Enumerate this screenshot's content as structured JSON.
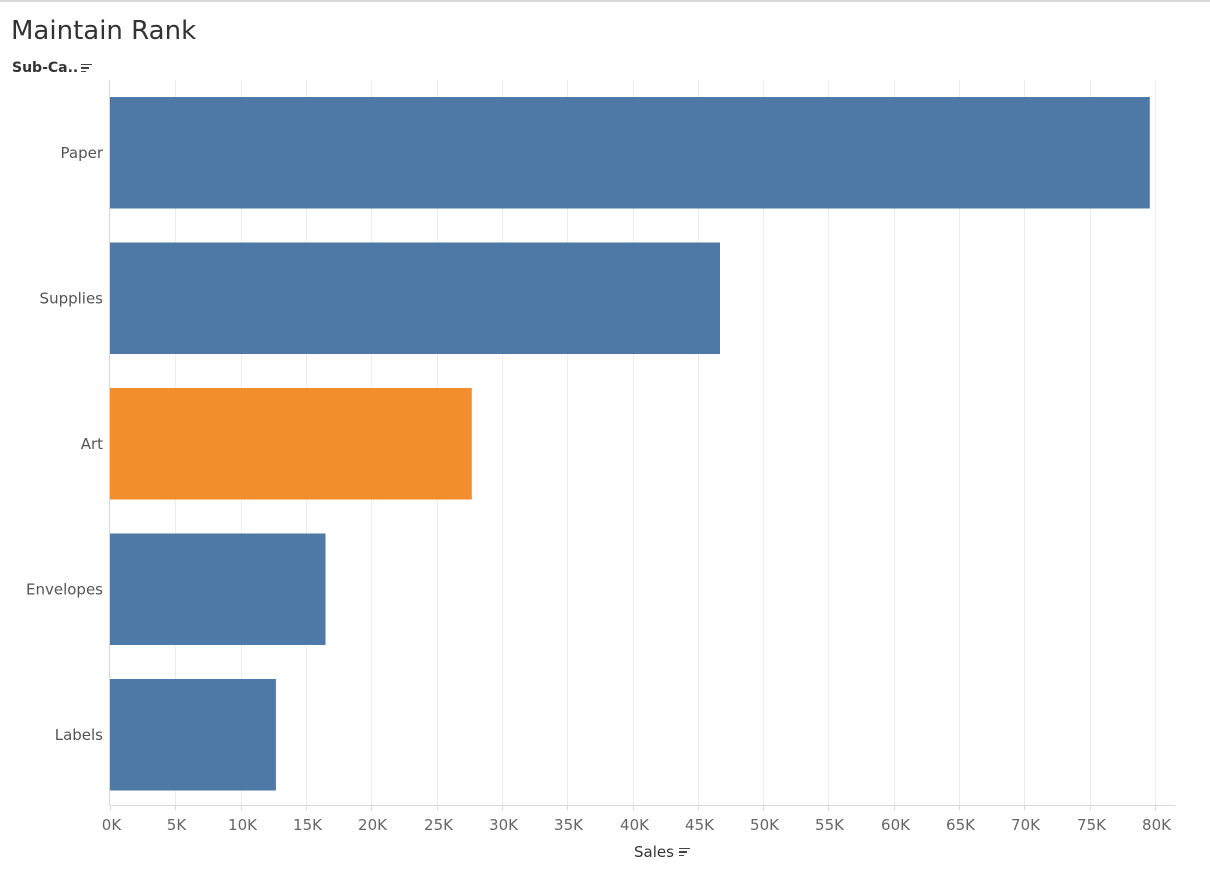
{
  "title": "Maintain Rank",
  "dimension_header": "Sub-Ca..",
  "measure_header": "Sales",
  "colors": {
    "bar_default": "#4e79a7",
    "bar_highlight": "#f28e2b",
    "gridline": "#ececec",
    "axis": "#d8d8d8"
  },
  "chart_data": {
    "type": "bar",
    "orientation": "horizontal",
    "categories": [
      "Paper",
      "Supplies",
      "Art",
      "Envelopes",
      "Labels"
    ],
    "values": [
      79600,
      46700,
      27700,
      16500,
      12700
    ],
    "highlighted_category": "Art",
    "xlabel": "Sales",
    "ylabel": "Sub-Ca..",
    "xlim": [
      0,
      80000
    ],
    "x_ticks": [
      0,
      5000,
      10000,
      15000,
      20000,
      25000,
      30000,
      35000,
      40000,
      45000,
      50000,
      55000,
      60000,
      65000,
      70000,
      75000,
      80000
    ],
    "x_tick_labels": [
      "0K",
      "5K",
      "10K",
      "15K",
      "20K",
      "25K",
      "30K",
      "35K",
      "40K",
      "45K",
      "50K",
      "55K",
      "60K",
      "65K",
      "70K",
      "75K",
      "80K"
    ],
    "grid": true,
    "sorted": "descending"
  }
}
